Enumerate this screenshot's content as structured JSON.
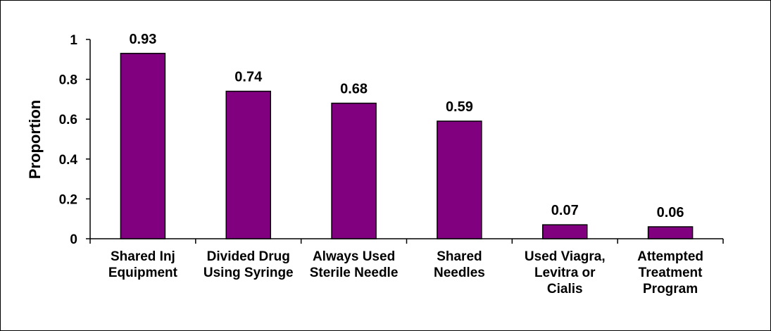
{
  "chart_data": {
    "type": "bar",
    "title": "",
    "xlabel": "",
    "ylabel": "Proportion",
    "ylim": [
      0,
      1
    ],
    "yticks": [
      "0",
      "0.2",
      "0.4",
      "0.6",
      "0.8",
      "1"
    ],
    "grid": false,
    "legend": "none",
    "bar_color": "#800080",
    "categories": [
      [
        "Shared Inj",
        "Equipment"
      ],
      [
        "Divided Drug",
        "Using Syringe"
      ],
      [
        "Always Used",
        "Sterile Needle"
      ],
      [
        "Shared",
        "Needles"
      ],
      [
        "Used Viagra,",
        "Levitra or",
        "Cialis"
      ],
      [
        "Attempted",
        "Treatment",
        "Program"
      ]
    ],
    "values": [
      0.93,
      0.74,
      0.68,
      0.59,
      0.07,
      0.06
    ],
    "data_labels": [
      "0.93",
      "0.74",
      "0.68",
      "0.59",
      "0.07",
      "0.06"
    ]
  }
}
